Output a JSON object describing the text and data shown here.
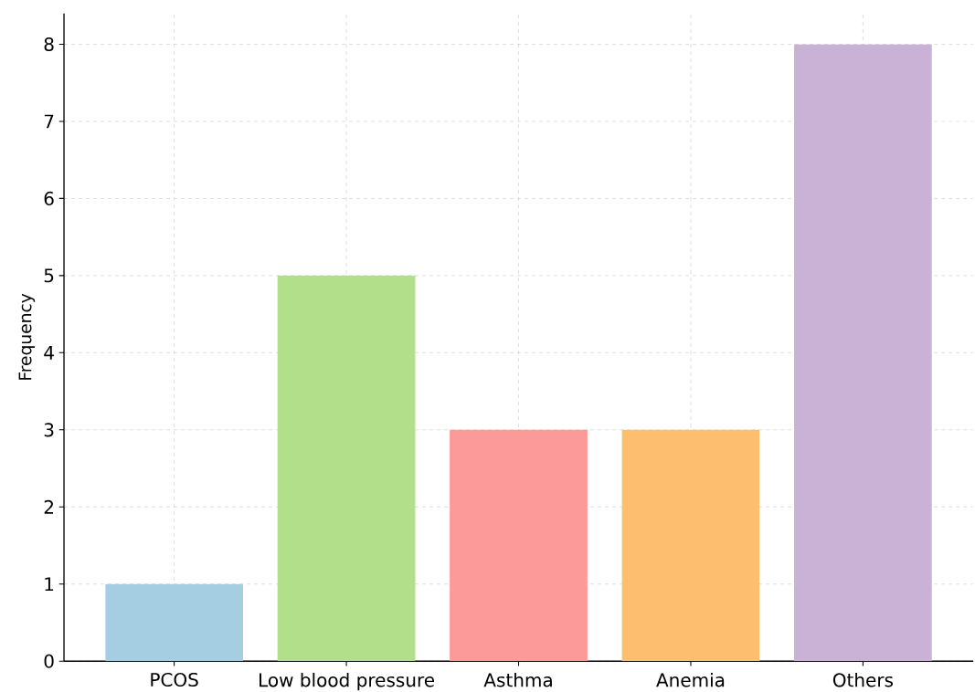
{
  "chart_data": {
    "type": "bar",
    "ylabel": "Frequency",
    "categories": [
      "PCOS",
      "Low blood pressure",
      "Asthma",
      "Anemia",
      "Others"
    ],
    "values": [
      1,
      5,
      3,
      3,
      8
    ],
    "colors": [
      "#a6cee3",
      "#b2df8a",
      "#fb9a99",
      "#fdbf6f",
      "#cab2d6"
    ],
    "ylim": [
      0,
      8.4
    ],
    "yticks": [
      0,
      1,
      2,
      3,
      4,
      5,
      6,
      7,
      8
    ],
    "grid": true
  }
}
